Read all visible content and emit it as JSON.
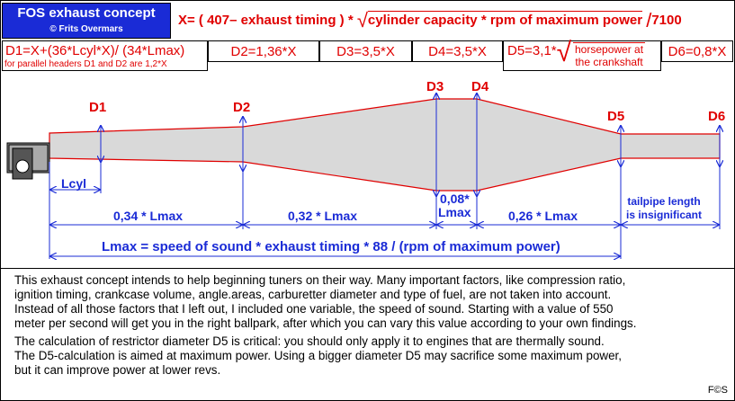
{
  "title": {
    "main": "FOS exhaust concept",
    "sub": "© Frits Overmars"
  },
  "formula_x": {
    "lhs": "X= ( 407",
    "middle": "exhaust timing )",
    "radicand": "cylinder capacity",
    "radicand2": "rpm of maximum power",
    "divisor": "7100"
  },
  "cells": {
    "d1": "D1=X+(36",
    "d1b": "Lcyl",
    "d1c": "X)/ (34",
    "d1d": "Lmax)",
    "d1_note": "for parallel headers D1 and D2 are 1,2",
    "d1_note_x": "X",
    "d2": "D2=1,36",
    "d3": "D3=3,5",
    "d4": "D4=3,5",
    "d5": "D5=3,1",
    "d5_hp1": "horsepower at",
    "d5_hp2": "the crankshaft",
    "d6": "D6=0,8",
    "x": "X"
  },
  "diagram_labels": {
    "d1": "D1",
    "d2": "D2",
    "d3": "D3",
    "d4": "D4",
    "d5": "D5",
    "d6": "D6",
    "lcyl": "Lcyl",
    "seg1": "0,34",
    "seg2": "0,32",
    "seg3a": "0,08",
    "seg3b": "Lmax",
    "seg4": "0,26",
    "lmax": "Lmax",
    "tail1": "tailpipe length",
    "tail2": "is insignificant",
    "lmax_formula_a": "Lmax = speed of sound",
    "lmax_formula_b": "exhaust timing",
    "lmax_formula_c": "88",
    "lmax_formula_d": "(rpm of maximum power)"
  },
  "paragraphs": [
    "This exhaust concept intends to help beginning tuners on their way. Many important factors, like compression ratio,",
    "ignition timing, crankcase volume, angle.areas, carburetter diameter and type of fuel, are not taken into account.",
    "Instead of all those factors that I left out, I included one variable, the speed of sound.  Starting with a value of 550",
    "meter per second will get you in the right ballpark, after which you can vary this value according to your own findings.",
    "The calculation of restrictor diameter D5 is critical: you should only apply it to engines that are thermally sound.",
    "The D5-calculation is aimed at maximum power. Using a bigger diameter D5 may sacrifice some maximum power,",
    "but it can improve power at lower revs."
  ],
  "signature": "F©S",
  "colors": {
    "accent_blue": "#1a2bd6",
    "accent_red": "#e00000",
    "pipe_fill": "#d9d9d9"
  }
}
